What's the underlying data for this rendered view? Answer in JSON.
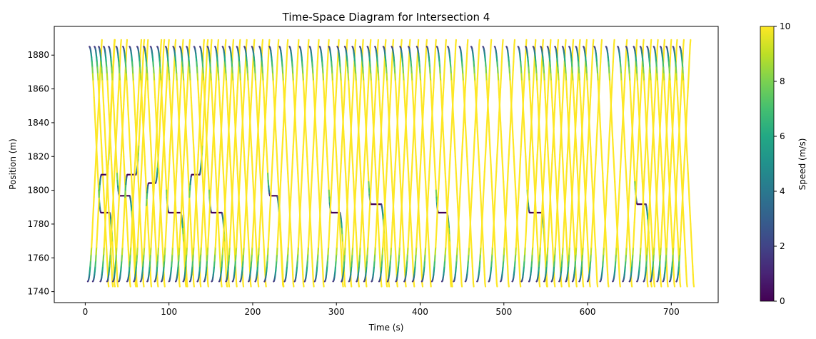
{
  "chart_data": {
    "type": "scatter",
    "title": "Time-Space Diagram for Intersection 4",
    "xlabel": "Time (s)",
    "ylabel": "Position (m)",
    "xlim": [
      -37,
      756
    ],
    "ylim": [
      1733.5,
      1897
    ],
    "xticks": [
      0,
      100,
      200,
      300,
      400,
      500,
      600,
      700
    ],
    "yticks": [
      1740,
      1760,
      1780,
      1800,
      1820,
      1840,
      1860,
      1880
    ],
    "grid": false,
    "colorbar": {
      "label": "Speed (m/s)",
      "colormap": "viridis",
      "range": [
        0,
        10
      ],
      "ticks": [
        0,
        2,
        4,
        6,
        8,
        10
      ]
    },
    "series_description": "Vehicle trajectories: southbound lines from ~1885 m to ~1745 m and northbound lines from ~1745 m to ~1890 m; vehicles decelerate near the stop region around 1792-1810 m",
    "trajectories": [
      {
        "dir": "down",
        "t0": 5,
        "wait": 10,
        "stopY": 1792
      },
      {
        "dir": "down",
        "t0": 11,
        "wait": 0
      },
      {
        "dir": "up",
        "t0": 3,
        "wait": 0
      },
      {
        "dir": "up",
        "t0": 9,
        "wait": 6,
        "stopY": 1800
      },
      {
        "dir": "down",
        "t0": 16,
        "wait": 0
      },
      {
        "dir": "up",
        "t0": 18,
        "wait": 0
      },
      {
        "dir": "down",
        "t0": 22,
        "wait": 0
      },
      {
        "dir": "up",
        "t0": 26,
        "wait": 0
      },
      {
        "dir": "down",
        "t0": 28,
        "wait": 12,
        "stopY": 1802
      },
      {
        "dir": "up",
        "t0": 33,
        "wait": 0
      },
      {
        "dir": "down",
        "t0": 37,
        "wait": 0
      },
      {
        "dir": "up",
        "t0": 40,
        "wait": 10,
        "stopY": 1802
      },
      {
        "dir": "down",
        "t0": 45,
        "wait": 0
      },
      {
        "dir": "up",
        "t0": 50,
        "wait": 0
      },
      {
        "dir": "down",
        "t0": 53,
        "wait": 0
      },
      {
        "dir": "up",
        "t0": 58,
        "wait": 0
      },
      {
        "dir": "down",
        "t0": 62,
        "wait": 0
      },
      {
        "dir": "up",
        "t0": 66,
        "wait": 8,
        "stopY": 1798
      },
      {
        "dir": "down",
        "t0": 70,
        "wait": 0
      },
      {
        "dir": "up",
        "t0": 74,
        "wait": 0
      },
      {
        "dir": "down",
        "t0": 78,
        "wait": 0
      },
      {
        "dir": "up",
        "t0": 83,
        "wait": 0
      },
      {
        "dir": "down",
        "t0": 86,
        "wait": 14,
        "stopY": 1792
      },
      {
        "dir": "up",
        "t0": 91,
        "wait": 0
      },
      {
        "dir": "down",
        "t0": 96,
        "wait": 0
      },
      {
        "dir": "up",
        "t0": 100,
        "wait": 0
      },
      {
        "dir": "down",
        "t0": 105,
        "wait": 0
      },
      {
        "dir": "up",
        "t0": 108,
        "wait": 0
      },
      {
        "dir": "down",
        "t0": 113,
        "wait": 0
      },
      {
        "dir": "up",
        "t0": 117,
        "wait": 9,
        "stopY": 1800
      },
      {
        "dir": "down",
        "t0": 121,
        "wait": 0
      },
      {
        "dir": "up",
        "t0": 125,
        "wait": 0
      },
      {
        "dir": "down",
        "t0": 130,
        "wait": 0
      },
      {
        "dir": "up",
        "t0": 134,
        "wait": 0
      },
      {
        "dir": "down",
        "t0": 137,
        "wait": 12,
        "stopY": 1792
      },
      {
        "dir": "up",
        "t0": 142,
        "wait": 0
      },
      {
        "dir": "down",
        "t0": 146,
        "wait": 0
      },
      {
        "dir": "up",
        "t0": 151,
        "wait": 0
      },
      {
        "dir": "down",
        "t0": 155,
        "wait": 0
      },
      {
        "dir": "up",
        "t0": 160,
        "wait": 0
      },
      {
        "dir": "down",
        "t0": 164,
        "wait": 0
      },
      {
        "dir": "up",
        "t0": 168,
        "wait": 0
      },
      {
        "dir": "down",
        "t0": 172,
        "wait": 0
      },
      {
        "dir": "up",
        "t0": 176,
        "wait": 0
      },
      {
        "dir": "down",
        "t0": 181,
        "wait": 0
      },
      {
        "dir": "up",
        "t0": 185,
        "wait": 0
      },
      {
        "dir": "down",
        "t0": 190,
        "wait": 0
      },
      {
        "dir": "up",
        "t0": 195,
        "wait": 0
      },
      {
        "dir": "down",
        "t0": 199,
        "wait": 0
      },
      {
        "dir": "up",
        "t0": 203,
        "wait": 0
      },
      {
        "dir": "down",
        "t0": 208,
        "wait": 8,
        "stopY": 1802
      },
      {
        "dir": "up",
        "t0": 214,
        "wait": 0
      },
      {
        "dir": "down",
        "t0": 220,
        "wait": 0
      },
      {
        "dir": "up",
        "t0": 225,
        "wait": 0
      },
      {
        "dir": "down",
        "t0": 232,
        "wait": 0
      },
      {
        "dir": "up",
        "t0": 238,
        "wait": 0
      },
      {
        "dir": "down",
        "t0": 244,
        "wait": 0
      },
      {
        "dir": "up",
        "t0": 250,
        "wait": 0
      },
      {
        "dir": "down",
        "t0": 256,
        "wait": 0
      },
      {
        "dir": "up",
        "t0": 262,
        "wait": 0
      },
      {
        "dir": "down",
        "t0": 268,
        "wait": 0
      },
      {
        "dir": "up",
        "t0": 274,
        "wait": 0
      },
      {
        "dir": "down",
        "t0": 280,
        "wait": 10,
        "stopY": 1792
      },
      {
        "dir": "up",
        "t0": 286,
        "wait": 0
      },
      {
        "dir": "down",
        "t0": 291,
        "wait": 0
      },
      {
        "dir": "up",
        "t0": 296,
        "wait": 0
      },
      {
        "dir": "down",
        "t0": 301,
        "wait": 0
      },
      {
        "dir": "up",
        "t0": 306,
        "wait": 0
      },
      {
        "dir": "down",
        "t0": 310,
        "wait": 0
      },
      {
        "dir": "up",
        "t0": 315,
        "wait": 0
      },
      {
        "dir": "down",
        "t0": 319,
        "wait": 0
      },
      {
        "dir": "up",
        "t0": 324,
        "wait": 0
      },
      {
        "dir": "down",
        "t0": 328,
        "wait": 12,
        "stopY": 1800
      },
      {
        "dir": "up",
        "t0": 333,
        "wait": 0
      },
      {
        "dir": "down",
        "t0": 337,
        "wait": 0
      },
      {
        "dir": "up",
        "t0": 342,
        "wait": 0
      },
      {
        "dir": "down",
        "t0": 346,
        "wait": 0
      },
      {
        "dir": "up",
        "t0": 351,
        "wait": 0
      },
      {
        "dir": "down",
        "t0": 356,
        "wait": 0
      },
      {
        "dir": "up",
        "t0": 361,
        "wait": 0
      },
      {
        "dir": "down",
        "t0": 366,
        "wait": 0
      },
      {
        "dir": "up",
        "t0": 371,
        "wait": 0
      },
      {
        "dir": "down",
        "t0": 376,
        "wait": 0
      },
      {
        "dir": "up",
        "t0": 381,
        "wait": 0
      },
      {
        "dir": "down",
        "t0": 386,
        "wait": 0
      },
      {
        "dir": "up",
        "t0": 391,
        "wait": 0
      },
      {
        "dir": "down",
        "t0": 396,
        "wait": 0
      },
      {
        "dir": "up",
        "t0": 402,
        "wait": 0
      },
      {
        "dir": "down",
        "t0": 408,
        "wait": 10,
        "stopY": 1792
      },
      {
        "dir": "up",
        "t0": 414,
        "wait": 0
      },
      {
        "dir": "down",
        "t0": 420,
        "wait": 0
      },
      {
        "dir": "up",
        "t0": 426,
        "wait": 0
      },
      {
        "dir": "down",
        "t0": 433,
        "wait": 0
      },
      {
        "dir": "up",
        "t0": 440,
        "wait": 0
      },
      {
        "dir": "down",
        "t0": 447,
        "wait": 0
      },
      {
        "dir": "up",
        "t0": 454,
        "wait": 0
      },
      {
        "dir": "down",
        "t0": 461,
        "wait": 0
      },
      {
        "dir": "up",
        "t0": 468,
        "wait": 0
      },
      {
        "dir": "down",
        "t0": 475,
        "wait": 0
      },
      {
        "dir": "up",
        "t0": 482,
        "wait": 0
      },
      {
        "dir": "down",
        "t0": 489,
        "wait": 0
      },
      {
        "dir": "up",
        "t0": 496,
        "wait": 0
      },
      {
        "dir": "down",
        "t0": 503,
        "wait": 0
      },
      {
        "dir": "up",
        "t0": 510,
        "wait": 0
      },
      {
        "dir": "down",
        "t0": 517,
        "wait": 14,
        "stopY": 1792
      },
      {
        "dir": "up",
        "t0": 521,
        "wait": 0
      },
      {
        "dir": "down",
        "t0": 526,
        "wait": 0
      },
      {
        "dir": "up",
        "t0": 530,
        "wait": 0
      },
      {
        "dir": "down",
        "t0": 535,
        "wait": 0
      },
      {
        "dir": "up",
        "t0": 539,
        "wait": 0
      },
      {
        "dir": "down",
        "t0": 544,
        "wait": 0
      },
      {
        "dir": "up",
        "t0": 548,
        "wait": 0
      },
      {
        "dir": "down",
        "t0": 552,
        "wait": 0
      },
      {
        "dir": "up",
        "t0": 557,
        "wait": 0
      },
      {
        "dir": "down",
        "t0": 561,
        "wait": 0
      },
      {
        "dir": "up",
        "t0": 566,
        "wait": 0
      },
      {
        "dir": "down",
        "t0": 570,
        "wait": 0
      },
      {
        "dir": "up",
        "t0": 574,
        "wait": 0
      },
      {
        "dir": "down",
        "t0": 578,
        "wait": 0
      },
      {
        "dir": "up",
        "t0": 582,
        "wait": 0
      },
      {
        "dir": "down",
        "t0": 586,
        "wait": 0
      },
      {
        "dir": "up",
        "t0": 590,
        "wait": 0
      },
      {
        "dir": "down",
        "t0": 595,
        "wait": 0
      },
      {
        "dir": "up",
        "t0": 600,
        "wait": 0
      },
      {
        "dir": "down",
        "t0": 608,
        "wait": 0
      },
      {
        "dir": "up",
        "t0": 615,
        "wait": 0
      },
      {
        "dir": "down",
        "t0": 622,
        "wait": 0
      },
      {
        "dir": "up",
        "t0": 630,
        "wait": 0
      },
      {
        "dir": "down",
        "t0": 636,
        "wait": 0
      },
      {
        "dir": "up",
        "t0": 642,
        "wait": 0
      },
      {
        "dir": "down",
        "t0": 646,
        "wait": 10,
        "stopY": 1800
      },
      {
        "dir": "up",
        "t0": 650,
        "wait": 0
      },
      {
        "dir": "down",
        "t0": 655,
        "wait": 0
      },
      {
        "dir": "up",
        "t0": 659,
        "wait": 0
      },
      {
        "dir": "down",
        "t0": 663,
        "wait": 0
      },
      {
        "dir": "up",
        "t0": 667,
        "wait": 0
      },
      {
        "dir": "down",
        "t0": 671,
        "wait": 0
      },
      {
        "dir": "up",
        "t0": 675,
        "wait": 0
      },
      {
        "dir": "down",
        "t0": 679,
        "wait": 0
      },
      {
        "dir": "up",
        "t0": 683,
        "wait": 0
      },
      {
        "dir": "down",
        "t0": 687,
        "wait": 0
      },
      {
        "dir": "up",
        "t0": 690,
        "wait": 0
      },
      {
        "dir": "down",
        "t0": 694,
        "wait": 0
      },
      {
        "dir": "up",
        "t0": 698,
        "wait": 0
      },
      {
        "dir": "down",
        "t0": 702,
        "wait": 0
      },
      {
        "dir": "up",
        "t0": 706,
        "wait": 0
      },
      {
        "dir": "down",
        "t0": 710,
        "wait": 0
      }
    ]
  }
}
